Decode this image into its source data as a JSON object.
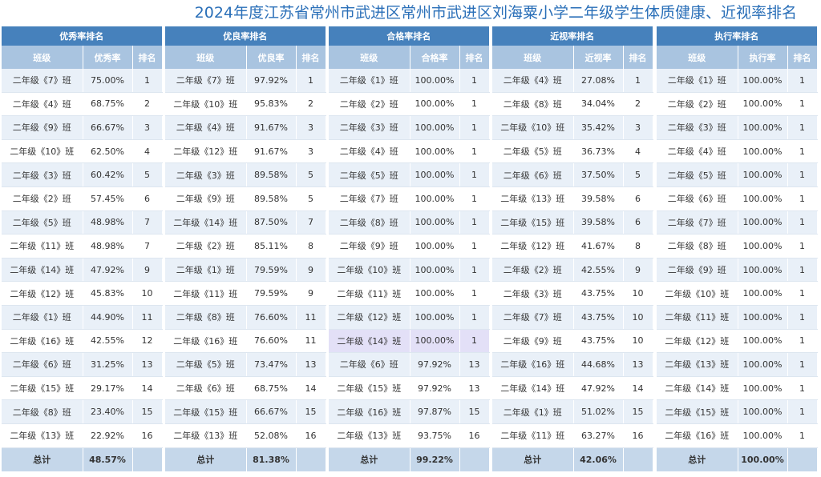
{
  "title": "2024年度江苏省常州市武进区常州市武进区刘海粟小学二年级学生体质健康、近视率排名",
  "tables": [
    {
      "title": "优秀率排名",
      "headers": [
        "班级",
        "优秀率",
        "排名"
      ],
      "rows": [
        [
          "二年级《7》班",
          "75.00%",
          "1"
        ],
        [
          "二年级《4》班",
          "68.75%",
          "2"
        ],
        [
          "二年级《9》班",
          "66.67%",
          "3"
        ],
        [
          "二年级《10》班",
          "62.50%",
          "4"
        ],
        [
          "二年级《3》班",
          "60.42%",
          "5"
        ],
        [
          "二年级《2》班",
          "57.45%",
          "6"
        ],
        [
          "二年级《5》班",
          "48.98%",
          "7"
        ],
        [
          "二年级《11》班",
          "48.98%",
          "7"
        ],
        [
          "二年级《14》班",
          "47.92%",
          "9"
        ],
        [
          "二年级《12》班",
          "45.83%",
          "10"
        ],
        [
          "二年级《1》班",
          "44.90%",
          "11"
        ],
        [
          "二年级《16》班",
          "42.55%",
          "12"
        ],
        [
          "二年级《6》班",
          "31.25%",
          "13"
        ],
        [
          "二年级《15》班",
          "29.17%",
          "14"
        ],
        [
          "二年级《8》班",
          "23.40%",
          "15"
        ],
        [
          "二年级《13》班",
          "22.92%",
          "16"
        ]
      ],
      "total": [
        "总计",
        "48.57%",
        ""
      ]
    },
    {
      "title": "优良率排名",
      "headers": [
        "班级",
        "优良率",
        "排名"
      ],
      "rows": [
        [
          "二年级《7》班",
          "97.92%",
          "1"
        ],
        [
          "二年级《10》班",
          "95.83%",
          "2"
        ],
        [
          "二年级《4》班",
          "91.67%",
          "3"
        ],
        [
          "二年级《12》班",
          "91.67%",
          "3"
        ],
        [
          "二年级《3》班",
          "89.58%",
          "5"
        ],
        [
          "二年级《9》班",
          "89.58%",
          "5"
        ],
        [
          "二年级《14》班",
          "87.50%",
          "7"
        ],
        [
          "二年级《2》班",
          "85.11%",
          "8"
        ],
        [
          "二年级《1》班",
          "79.59%",
          "9"
        ],
        [
          "二年级《11》班",
          "79.59%",
          "9"
        ],
        [
          "二年级《8》班",
          "76.60%",
          "11"
        ],
        [
          "二年级《16》班",
          "76.60%",
          "11"
        ],
        [
          "二年级《5》班",
          "73.47%",
          "13"
        ],
        [
          "二年级《6》班",
          "68.75%",
          "14"
        ],
        [
          "二年级《15》班",
          "66.67%",
          "15"
        ],
        [
          "二年级《13》班",
          "52.08%",
          "16"
        ]
      ],
      "total": [
        "总计",
        "81.38%",
        ""
      ]
    },
    {
      "title": "合格率排名",
      "headers": [
        "班级",
        "合格率",
        "排名"
      ],
      "highlight_row": 11,
      "rows": [
        [
          "二年级《1》班",
          "100.00%",
          "1"
        ],
        [
          "二年级《2》班",
          "100.00%",
          "1"
        ],
        [
          "二年级《3》班",
          "100.00%",
          "1"
        ],
        [
          "二年级《4》班",
          "100.00%",
          "1"
        ],
        [
          "二年级《5》班",
          "100.00%",
          "1"
        ],
        [
          "二年级《7》班",
          "100.00%",
          "1"
        ],
        [
          "二年级《8》班",
          "100.00%",
          "1"
        ],
        [
          "二年级《9》班",
          "100.00%",
          "1"
        ],
        [
          "二年级《10》班",
          "100.00%",
          "1"
        ],
        [
          "二年级《11》班",
          "100.00%",
          "1"
        ],
        [
          "二年级《12》班",
          "100.00%",
          "1"
        ],
        [
          "二年级《14》班",
          "100.00%",
          "1"
        ],
        [
          "二年级《6》班",
          "97.92%",
          "13"
        ],
        [
          "二年级《15》班",
          "97.92%",
          "13"
        ],
        [
          "二年级《16》班",
          "97.87%",
          "15"
        ],
        [
          "二年级《13》班",
          "93.75%",
          "16"
        ]
      ],
      "total": [
        "总计",
        "99.22%",
        ""
      ]
    },
    {
      "title": "近视率排名",
      "headers": [
        "班级",
        "近视率",
        "排名"
      ],
      "rows": [
        [
          "二年级《4》班",
          "27.08%",
          "1"
        ],
        [
          "二年级《8》班",
          "34.04%",
          "2"
        ],
        [
          "二年级《10》班",
          "35.42%",
          "3"
        ],
        [
          "二年级《5》班",
          "36.73%",
          "4"
        ],
        [
          "二年级《6》班",
          "37.50%",
          "5"
        ],
        [
          "二年级《13》班",
          "39.58%",
          "6"
        ],
        [
          "二年级《15》班",
          "39.58%",
          "6"
        ],
        [
          "二年级《12》班",
          "41.67%",
          "8"
        ],
        [
          "二年级《2》班",
          "42.55%",
          "9"
        ],
        [
          "二年级《3》班",
          "43.75%",
          "10"
        ],
        [
          "二年级《7》班",
          "43.75%",
          "10"
        ],
        [
          "二年级《9》班",
          "43.75%",
          "10"
        ],
        [
          "二年级《16》班",
          "44.68%",
          "13"
        ],
        [
          "二年级《14》班",
          "47.92%",
          "14"
        ],
        [
          "二年级《1》班",
          "51.02%",
          "15"
        ],
        [
          "二年级《11》班",
          "63.27%",
          "16"
        ]
      ],
      "total": [
        "总计",
        "42.06%",
        ""
      ]
    },
    {
      "title": "执行率排名",
      "headers": [
        "班级",
        "执行率",
        "排名"
      ],
      "rows": [
        [
          "二年级《1》班",
          "100.00%",
          "1"
        ],
        [
          "二年级《2》班",
          "100.00%",
          "1"
        ],
        [
          "二年级《3》班",
          "100.00%",
          "1"
        ],
        [
          "二年级《4》班",
          "100.00%",
          "1"
        ],
        [
          "二年级《5》班",
          "100.00%",
          "1"
        ],
        [
          "二年级《6》班",
          "100.00%",
          "1"
        ],
        [
          "二年级《7》班",
          "100.00%",
          "1"
        ],
        [
          "二年级《8》班",
          "100.00%",
          "1"
        ],
        [
          "二年级《9》班",
          "100.00%",
          "1"
        ],
        [
          "二年级《10》班",
          "100.00%",
          "1"
        ],
        [
          "二年级《11》班",
          "100.00%",
          "1"
        ],
        [
          "二年级《12》班",
          "100.00%",
          "1"
        ],
        [
          "二年级《13》班",
          "100.00%",
          "1"
        ],
        [
          "二年级《14》班",
          "100.00%",
          "1"
        ],
        [
          "二年级《15》班",
          "100.00%",
          "1"
        ],
        [
          "二年级《16》班",
          "100.00%",
          "1"
        ]
      ],
      "total": [
        "总计",
        "100.00%",
        ""
      ]
    }
  ]
}
